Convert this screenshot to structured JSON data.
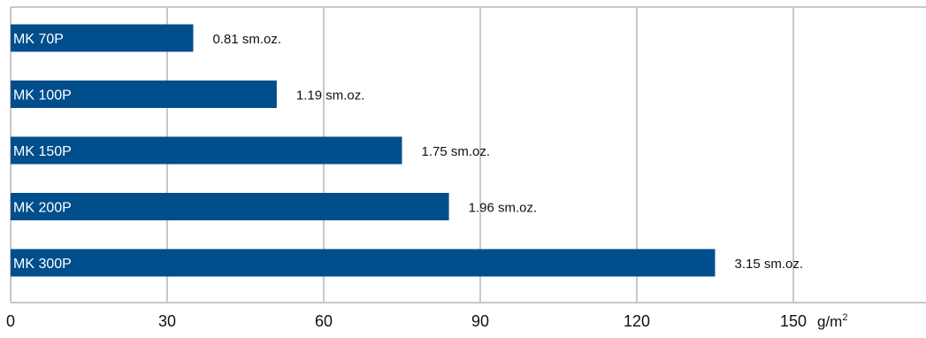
{
  "chart_data": {
    "type": "bar",
    "orientation": "horizontal",
    "categories": [
      "MK 70P",
      "MK 100P",
      "MK 150P",
      "MK 200P",
      "MK 300P"
    ],
    "values": [
      35,
      51,
      75,
      84,
      135
    ],
    "data_labels": [
      "0.81 sm.oz.",
      "1.19 sm.oz.",
      "1.75 sm.oz.",
      "1.96 sm.oz.",
      "3.15 sm.oz."
    ],
    "x_ticks": [
      0,
      30,
      60,
      90,
      120,
      150
    ],
    "xlim": [
      0,
      180
    ],
    "unit_base": "g/m",
    "unit_sup": "2",
    "bar_color": "#004e8c",
    "grid_color": "#c8c8c8",
    "grid": true,
    "legend": "none",
    "title": "",
    "xlabel": "",
    "ylabel": ""
  }
}
